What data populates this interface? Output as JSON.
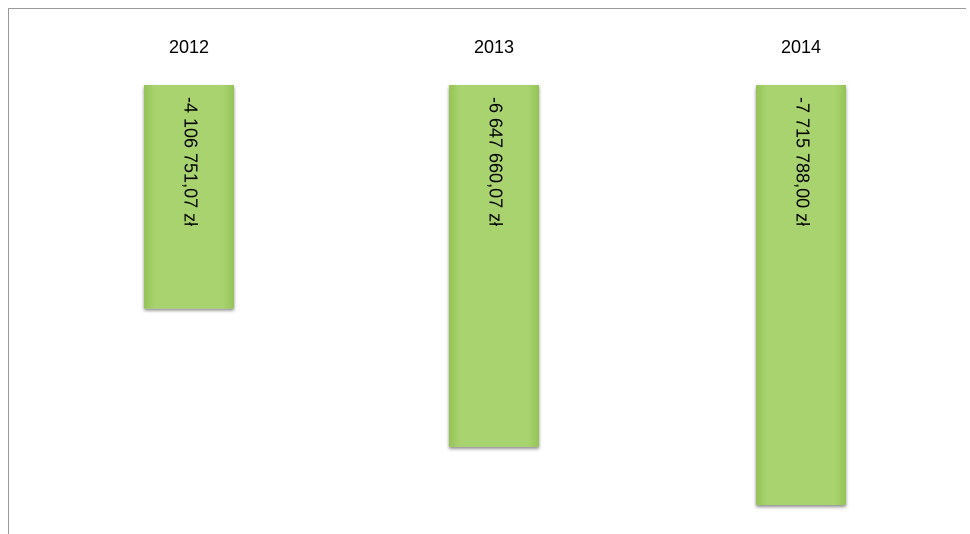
{
  "chart_data": {
    "type": "bar",
    "categories": [
      "2012",
      "2013",
      "2014"
    ],
    "values": [
      -4106751.07,
      -6647660.07,
      -7715788.0
    ],
    "value_labels": [
      "-4 106 751,07 zł",
      "-6 647 660,07 zł",
      "-7 715 788,00 zł"
    ],
    "color": "#a6d16b"
  }
}
